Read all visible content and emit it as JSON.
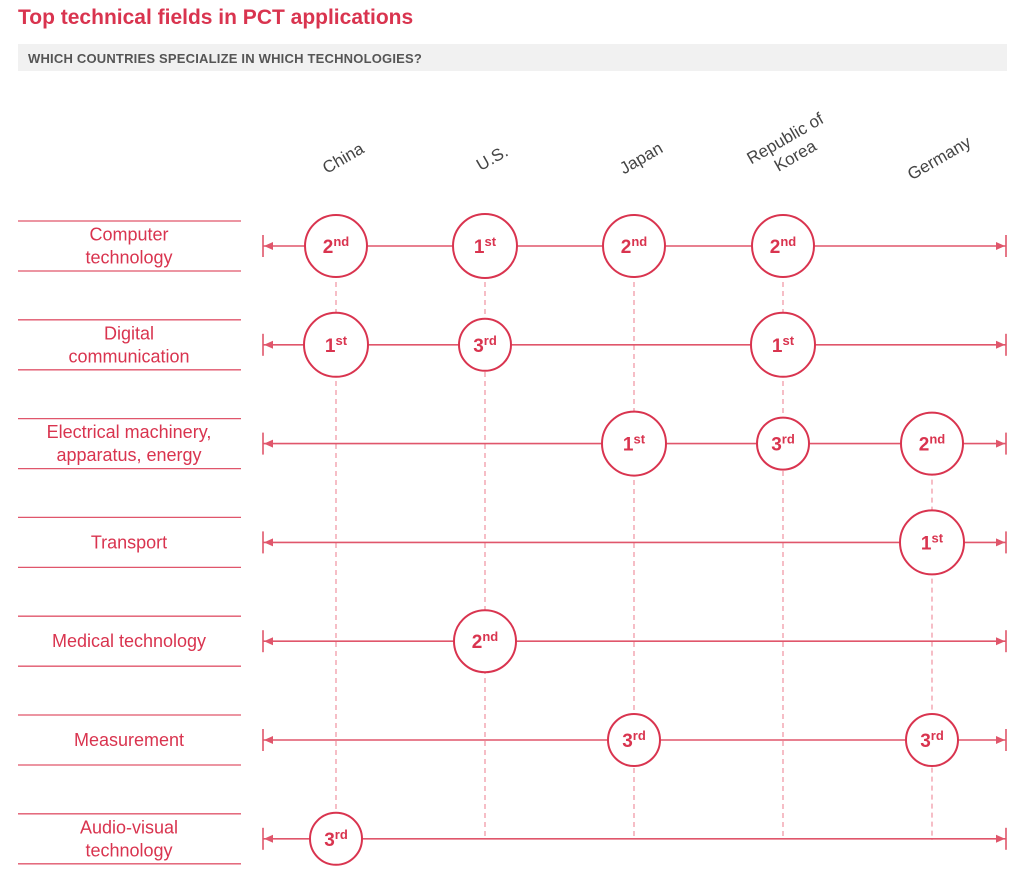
{
  "title": "Top technical fields in PCT applications",
  "subtitle": "WHICH COUNTRIES SPECIALIZE IN WHICH TECHNOLOGIES?",
  "colors": {
    "accent": "#d9344f",
    "line": "#e0566b",
    "dashed": "#f09aa8",
    "text": "#d9344f"
  },
  "chart_data": {
    "type": "table",
    "columns": [
      "China",
      "U.S.",
      "Japan",
      "Republic of Korea",
      "Germany"
    ],
    "column_labels": [
      [
        "China"
      ],
      [
        "U.S."
      ],
      [
        "Japan"
      ],
      [
        "Republic of",
        "Korea"
      ],
      [
        "Germany"
      ]
    ],
    "rows": [
      {
        "field": "Computer technology",
        "label_lines": [
          "Computer",
          "technology"
        ]
      },
      {
        "field": "Digital communication",
        "label_lines": [
          "Digital",
          "communication"
        ]
      },
      {
        "field": "Electrical machinery, apparatus, energy",
        "label_lines": [
          "Electrical machinery,",
          "apparatus, energy"
        ]
      },
      {
        "field": "Transport",
        "label_lines": [
          "Transport"
        ]
      },
      {
        "field": "Medical technology",
        "label_lines": [
          "Medical technology"
        ]
      },
      {
        "field": "Measurement",
        "label_lines": [
          "Measurement"
        ]
      },
      {
        "field": "Audio-visual technology",
        "label_lines": [
          "Audio-visual",
          "technology"
        ]
      }
    ],
    "ranks": [
      {
        "field": "Computer technology",
        "country": "China",
        "rank": 2,
        "label": "2nd"
      },
      {
        "field": "Computer technology",
        "country": "U.S.",
        "rank": 1,
        "label": "1st"
      },
      {
        "field": "Computer technology",
        "country": "Japan",
        "rank": 2,
        "label": "2nd"
      },
      {
        "field": "Computer technology",
        "country": "Republic of Korea",
        "rank": 2,
        "label": "2nd"
      },
      {
        "field": "Digital communication",
        "country": "China",
        "rank": 1,
        "label": "1st"
      },
      {
        "field": "Digital communication",
        "country": "U.S.",
        "rank": 3,
        "label": "3rd"
      },
      {
        "field": "Digital communication",
        "country": "Republic of Korea",
        "rank": 1,
        "label": "1st"
      },
      {
        "field": "Electrical machinery, apparatus, energy",
        "country": "Japan",
        "rank": 1,
        "label": "1st"
      },
      {
        "field": "Electrical machinery, apparatus, energy",
        "country": "Republic of Korea",
        "rank": 3,
        "label": "3rd"
      },
      {
        "field": "Electrical machinery, apparatus, energy",
        "country": "Germany",
        "rank": 2,
        "label": "2nd"
      },
      {
        "field": "Transport",
        "country": "Germany",
        "rank": 1,
        "label": "1st"
      },
      {
        "field": "Medical technology",
        "country": "U.S.",
        "rank": 2,
        "label": "2nd"
      },
      {
        "field": "Measurement",
        "country": "Japan",
        "rank": 3,
        "label": "3rd"
      },
      {
        "field": "Measurement",
        "country": "Germany",
        "rank": 3,
        "label": "3rd"
      },
      {
        "field": "Audio-visual technology",
        "country": "China",
        "rank": 3,
        "label": "3rd"
      }
    ]
  }
}
